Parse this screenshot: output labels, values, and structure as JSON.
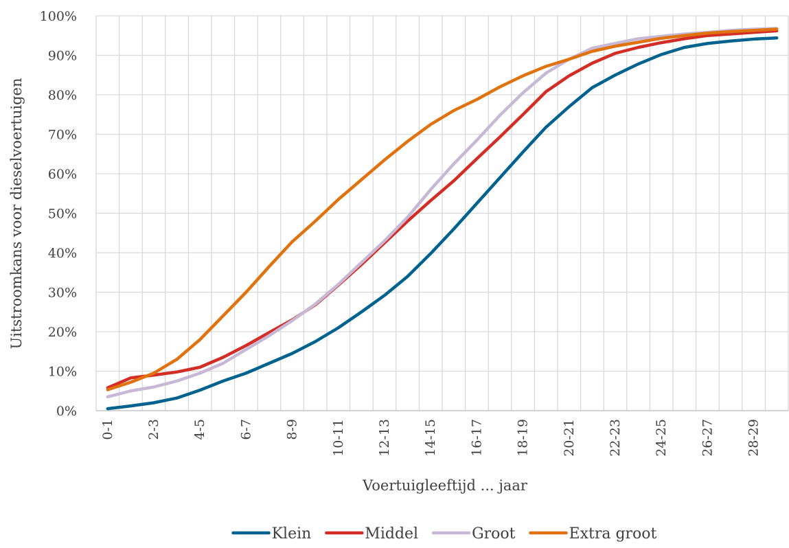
{
  "chart_data": {
    "type": "line",
    "title": "",
    "xlabel": "Voertuigleeftijd ... jaar",
    "ylabel": "Uitstroomkans voor dieselvoertuigen",
    "ylim": [
      0,
      100
    ],
    "y_ticks": [
      "0%",
      "10%",
      "20%",
      "30%",
      "40%",
      "50%",
      "60%",
      "70%",
      "80%",
      "90%",
      "100%"
    ],
    "x_tick_labels": [
      "0-1",
      "2-3",
      "4-5",
      "6-7",
      "8-9",
      "10-11",
      "12-13",
      "14-15",
      "16-17",
      "18-19",
      "20-21",
      "22-23",
      "24-25",
      "26-27",
      "28-29"
    ],
    "x": [
      "0-1",
      "1-2",
      "2-3",
      "3-4",
      "4-5",
      "5-6",
      "6-7",
      "7-8",
      "8-9",
      "9-10",
      "10-11",
      "11-12",
      "12-13",
      "13-14",
      "14-15",
      "15-16",
      "16-17",
      "17-18",
      "18-19",
      "19-20",
      "20-21",
      "21-22",
      "22-23",
      "23-24",
      "24-25",
      "25-26",
      "26-27",
      "27-28",
      "28-29",
      "29-30"
    ],
    "grid": true,
    "legend_position": "bottom",
    "series": [
      {
        "name": "Klein",
        "color": "#00628f",
        "values": [
          0.5,
          1.2,
          2.0,
          3.2,
          5.2,
          7.5,
          9.5,
          12.0,
          14.5,
          17.5,
          21.0,
          25.0,
          29.2,
          34.0,
          39.8,
          46.0,
          52.5,
          59.0,
          65.5,
          71.8,
          77.0,
          81.8,
          85.0,
          87.8,
          90.2,
          92.0,
          93.0,
          93.6,
          94.1,
          94.4
        ]
      },
      {
        "name": "Middel",
        "color": "#d42d25",
        "values": [
          5.8,
          8.3,
          9.0,
          9.8,
          11.0,
          13.5,
          16.5,
          19.8,
          23.0,
          26.8,
          31.8,
          37.0,
          42.5,
          48.0,
          53.2,
          58.2,
          63.8,
          69.3,
          75.0,
          80.8,
          84.8,
          88.0,
          90.5,
          92.0,
          93.2,
          94.2,
          95.0,
          95.4,
          95.8,
          96.2
        ]
      },
      {
        "name": "Groot",
        "color": "#c7b9d5",
        "values": [
          3.5,
          5.0,
          6.0,
          7.5,
          9.5,
          12.0,
          15.5,
          19.0,
          22.8,
          27.0,
          32.0,
          37.5,
          43.0,
          49.0,
          56.0,
          62.5,
          68.5,
          74.8,
          80.5,
          85.5,
          89.0,
          91.8,
          93.0,
          94.2,
          94.8,
          95.4,
          95.8,
          96.3,
          96.6,
          96.8
        ]
      },
      {
        "name": "Extra groot",
        "color": "#e0730f",
        "values": [
          5.3,
          7.2,
          9.5,
          13.0,
          18.0,
          24.0,
          30.0,
          36.5,
          42.8,
          48.0,
          53.5,
          58.5,
          63.5,
          68.2,
          72.5,
          76.0,
          78.8,
          82.0,
          84.8,
          87.2,
          89.0,
          91.0,
          92.3,
          93.3,
          94.3,
          95.0,
          95.6,
          96.0,
          96.3,
          96.6
        ]
      }
    ]
  }
}
